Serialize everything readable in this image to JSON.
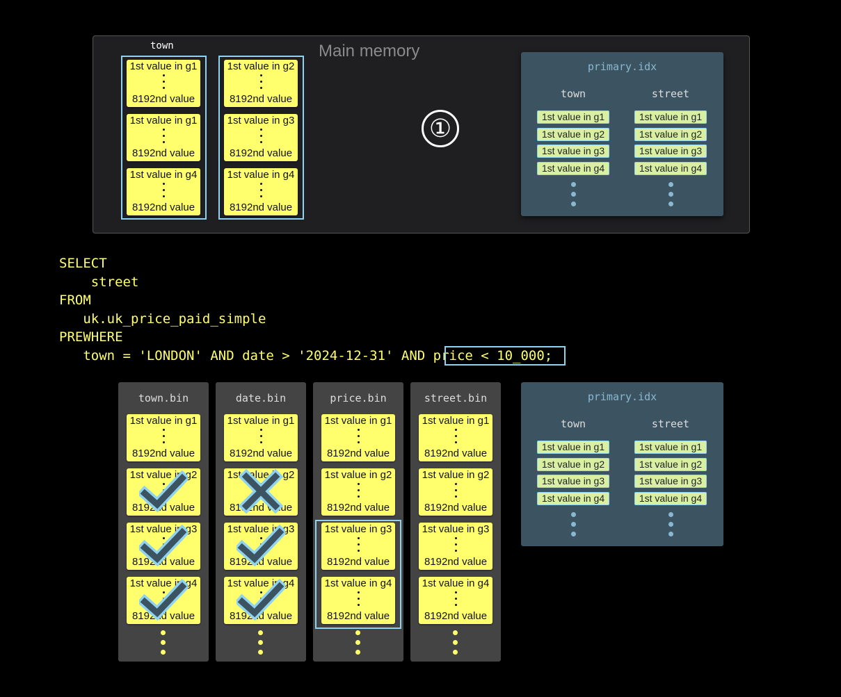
{
  "main_memory": {
    "label": "Main memory",
    "column_label": "town",
    "step": "①",
    "columns": [
      [
        {
          "first": "1st value in g1",
          "last": "8192nd value"
        },
        {
          "first": "1st value in g1",
          "last": "8192nd value"
        },
        {
          "first": "1st value in g4",
          "last": "8192nd value"
        }
      ],
      [
        {
          "first": "1st value in g2",
          "last": "8192nd value"
        },
        {
          "first": "1st value in g3",
          "last": "8192nd value"
        },
        {
          "first": "1st value in g4",
          "last": "8192nd value"
        }
      ]
    ]
  },
  "primary_idx": {
    "title": "primary.idx",
    "headers": [
      "town",
      "street"
    ],
    "entries": [
      "1st value in g1",
      "1st value in g2",
      "1st value in g3",
      "1st value in g4"
    ]
  },
  "sql": {
    "lines": [
      "SELECT",
      "    street",
      "FROM",
      "   uk.uk_price_paid_simple",
      "PREWHERE",
      "   town = 'LONDON' AND date > '2024-12-31' AND price < 10_000;"
    ],
    "highlight": "price < 10_000"
  },
  "bins": [
    {
      "title": "town.bin",
      "marks": [
        "",
        "check",
        "check",
        "check"
      ]
    },
    {
      "title": "date.bin",
      "marks": [
        "",
        "cross",
        "check",
        "check"
      ]
    },
    {
      "title": "price.bin",
      "marks": [
        "",
        "",
        "",
        ""
      ],
      "selected": [
        2,
        3
      ]
    },
    {
      "title": "street.bin",
      "marks": [
        "",
        "",
        "",
        ""
      ]
    }
  ],
  "granules": [
    "1st value in g1",
    "1st value in g2",
    "1st value in g3",
    "1st value in g4"
  ],
  "last_value": "8192nd value",
  "colors": {
    "block": "#ffff6e",
    "highlight": "#8fd3f0",
    "index_bg": "#3c5361",
    "bin_bg": "#444444",
    "mark": "#3c5361"
  }
}
